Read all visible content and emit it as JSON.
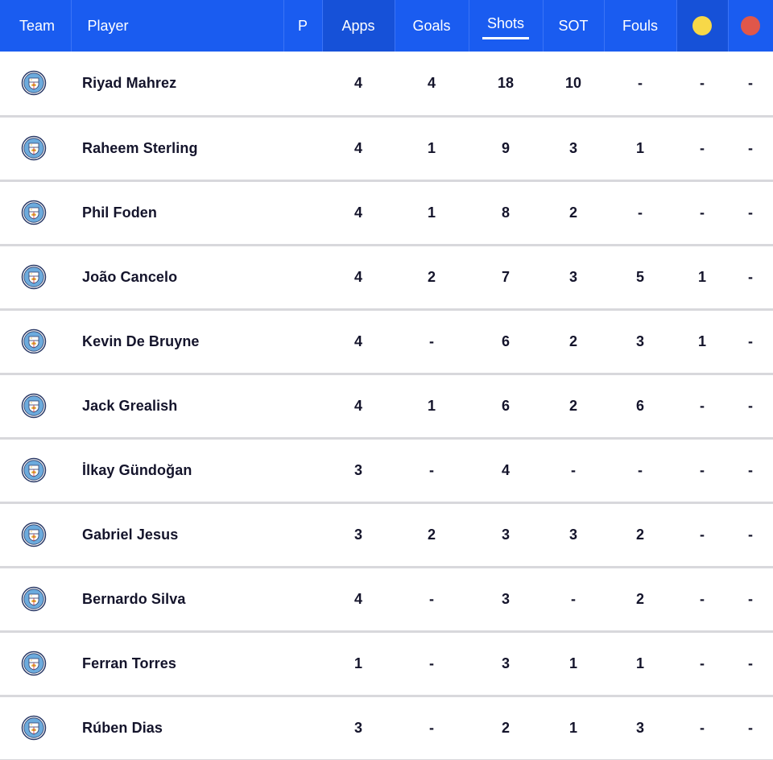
{
  "header": {
    "team": "Team",
    "player": "Player",
    "position": "P",
    "apps": "Apps",
    "goals": "Goals",
    "shots": "Shots",
    "sot": "SOT",
    "fouls": "Fouls",
    "yellow_icon": "yellow-card-icon",
    "red_icon": "red-card-icon"
  },
  "colors": {
    "header_bg": "#1a5cf0",
    "yellow_card": "#f7d848",
    "red_card": "#e0574a",
    "crest_blue": "#6cabdd"
  },
  "team_icon": "manchester-city-crest-icon",
  "rows": [
    {
      "player": "Riyad Mahrez",
      "position": "",
      "apps": "4",
      "goals": "4",
      "shots": "18",
      "sot": "10",
      "fouls": "-",
      "yellow": "-",
      "red": "-"
    },
    {
      "player": "Raheem Sterling",
      "position": "",
      "apps": "4",
      "goals": "1",
      "shots": "9",
      "sot": "3",
      "fouls": "1",
      "yellow": "-",
      "red": "-"
    },
    {
      "player": "Phil Foden",
      "position": "",
      "apps": "4",
      "goals": "1",
      "shots": "8",
      "sot": "2",
      "fouls": "-",
      "yellow": "-",
      "red": "-"
    },
    {
      "player": "João Cancelo",
      "position": "",
      "apps": "4",
      "goals": "2",
      "shots": "7",
      "sot": "3",
      "fouls": "5",
      "yellow": "1",
      "red": "-"
    },
    {
      "player": "Kevin De Bruyne",
      "position": "",
      "apps": "4",
      "goals": "-",
      "shots": "6",
      "sot": "2",
      "fouls": "3",
      "yellow": "1",
      "red": "-"
    },
    {
      "player": "Jack Grealish",
      "position": "",
      "apps": "4",
      "goals": "1",
      "shots": "6",
      "sot": "2",
      "fouls": "6",
      "yellow": "-",
      "red": "-"
    },
    {
      "player": "İlkay Gündoğan",
      "position": "",
      "apps": "3",
      "goals": "-",
      "shots": "4",
      "sot": "-",
      "fouls": "-",
      "yellow": "-",
      "red": "-"
    },
    {
      "player": "Gabriel Jesus",
      "position": "",
      "apps": "3",
      "goals": "2",
      "shots": "3",
      "sot": "3",
      "fouls": "2",
      "yellow": "-",
      "red": "-"
    },
    {
      "player": "Bernardo Silva",
      "position": "",
      "apps": "4",
      "goals": "-",
      "shots": "3",
      "sot": "-",
      "fouls": "2",
      "yellow": "-",
      "red": "-"
    },
    {
      "player": "Ferran Torres",
      "position": "",
      "apps": "1",
      "goals": "-",
      "shots": "3",
      "sot": "1",
      "fouls": "1",
      "yellow": "-",
      "red": "-"
    },
    {
      "player": "Rúben Dias",
      "position": "",
      "apps": "3",
      "goals": "-",
      "shots": "2",
      "sot": "1",
      "fouls": "3",
      "yellow": "-",
      "red": "-"
    }
  ]
}
